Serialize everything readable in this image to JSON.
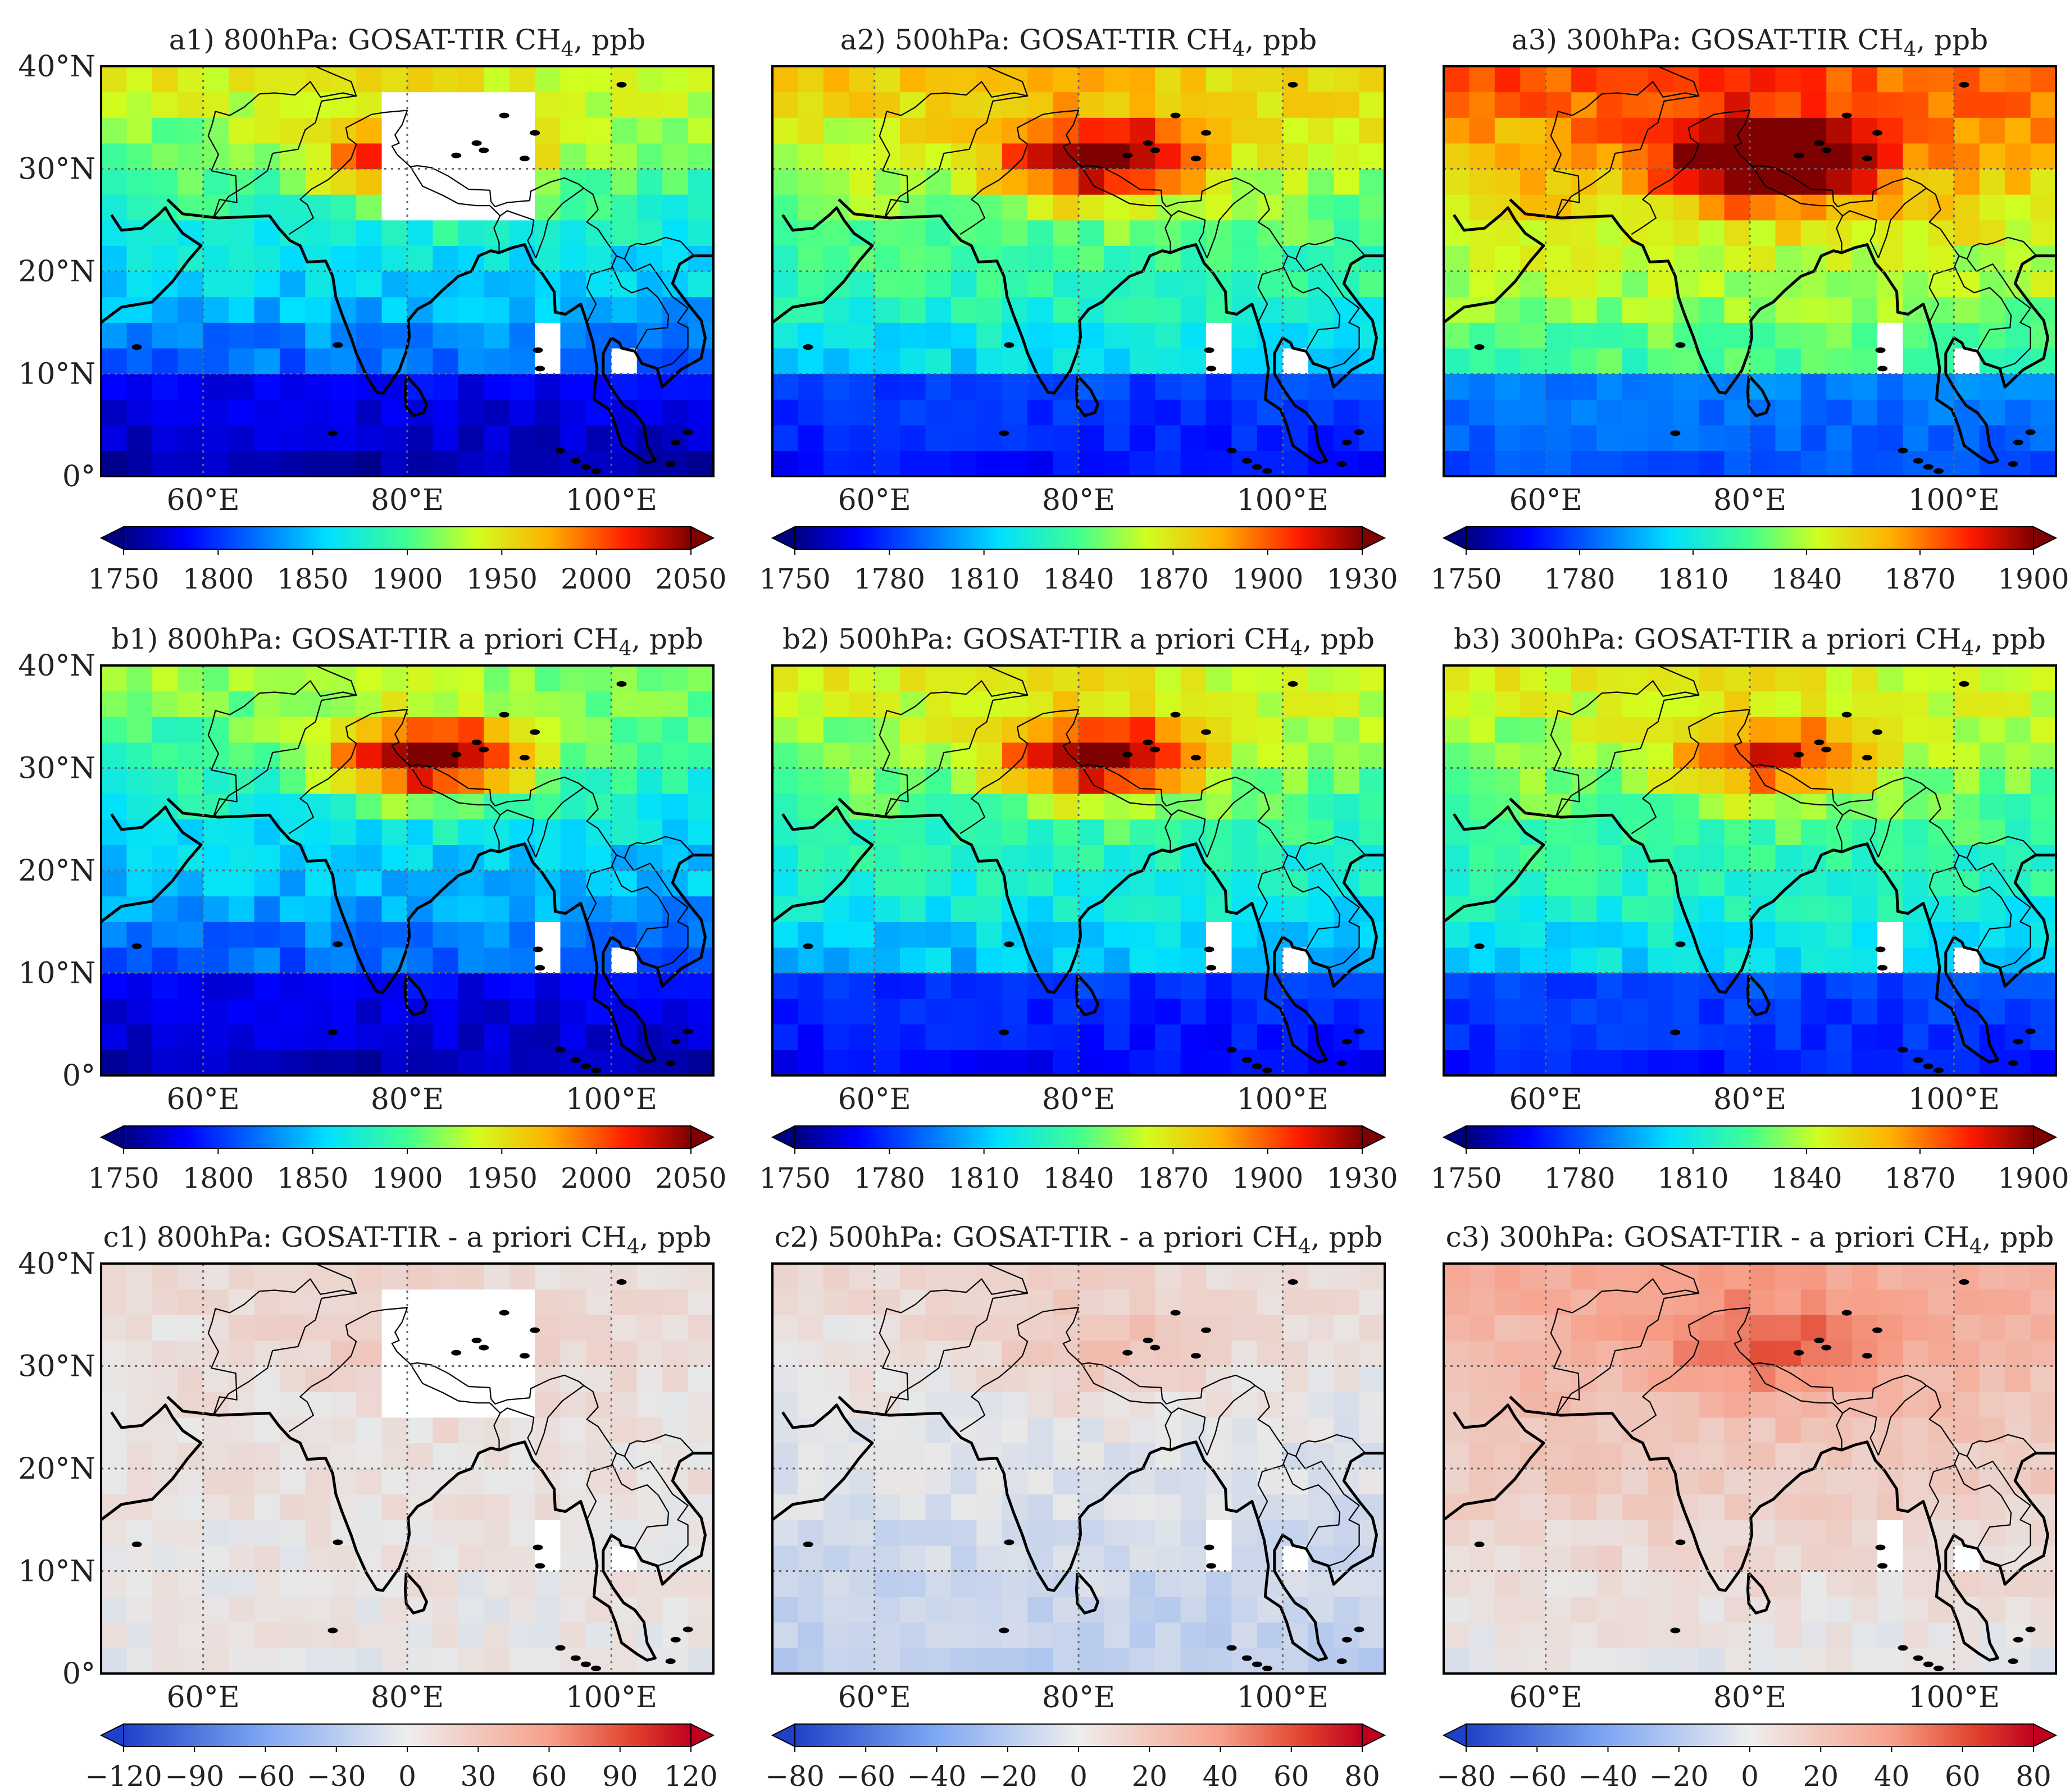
{
  "figure": {
    "description_free": true,
    "map_extent": {
      "lon": [
        50,
        110
      ],
      "lat": [
        0,
        40
      ]
    },
    "xticks": [
      {
        "value": 60,
        "label": "60°E"
      },
      {
        "value": 80,
        "label": "80°E"
      },
      {
        "value": 100,
        "label": "100°E"
      }
    ],
    "yticks": [
      {
        "value": 0,
        "label": "0°"
      },
      {
        "value": 10,
        "label": "10°N"
      },
      {
        "value": 20,
        "label": "20°N"
      },
      {
        "value": 30,
        "label": "30°N"
      },
      {
        "value": 40,
        "label": "40°N"
      }
    ]
  },
  "chart_data": [
    {
      "id": "a1",
      "type": "heatmap",
      "title_prefix": "a1) 800hPa: GOSAT-TIR CH",
      "title_sub": "4",
      "title_suffix": ", ppb",
      "colormap": "jet",
      "range": [
        1750,
        2050
      ],
      "cbar_ticks": [
        1750,
        1800,
        1850,
        1900,
        1950,
        2000,
        2050
      ],
      "mask": "a",
      "field": {
        "base": 1780,
        "gradient": 140,
        "hotspot": 0.9
      }
    },
    {
      "id": "a2",
      "type": "heatmap",
      "title_prefix": "a2) 500hPa: GOSAT-TIR CH",
      "title_sub": "4",
      "title_suffix": ", ppb",
      "colormap": "jet",
      "range": [
        1750,
        1930
      ],
      "cbar_ticks": [
        1750,
        1780,
        1810,
        1840,
        1870,
        1900,
        1930
      ],
      "mask": "b",
      "field": {
        "base": 0.22,
        "gradient": 0.5,
        "hotspot": 0.45
      }
    },
    {
      "id": "a3",
      "type": "heatmap",
      "title_prefix": "a3) 300hPa: GOSAT-TIR CH",
      "title_sub": "4",
      "title_suffix": ", ppb",
      "colormap": "jet",
      "range": [
        1750,
        1900
      ],
      "cbar_ticks": [
        1750,
        1780,
        1810,
        1840,
        1870,
        1900
      ],
      "mask": "b",
      "field": {
        "base": 0.35,
        "gradient": 0.5,
        "hotspot": 0.5
      }
    },
    {
      "id": "b1",
      "type": "heatmap",
      "title_prefix": "b1) 800hPa: GOSAT-TIR a priori CH",
      "title_sub": "4",
      "title_suffix": ", ppb",
      "colormap": "jet",
      "range": [
        1750,
        2050
      ],
      "cbar_ticks": [
        1750,
        1800,
        1850,
        1900,
        1950,
        2000,
        2050
      ],
      "mask": "b",
      "field": {
        "base": 0.08,
        "gradient": 0.5,
        "hotspot": 0.6
      }
    },
    {
      "id": "b2",
      "type": "heatmap",
      "title_prefix": "b2) 500hPa: GOSAT-TIR a priori CH",
      "title_sub": "4",
      "title_suffix": ", ppb",
      "colormap": "jet",
      "range": [
        1750,
        1930
      ],
      "cbar_ticks": [
        1750,
        1780,
        1810,
        1840,
        1870,
        1900,
        1930
      ],
      "mask": "b",
      "field": {
        "base": 0.2,
        "gradient": 0.45,
        "hotspot": 0.5
      }
    },
    {
      "id": "b3",
      "type": "heatmap",
      "title_prefix": "b3) 300hPa: GOSAT-TIR a priori CH",
      "title_sub": "4",
      "title_suffix": ", ppb",
      "colormap": "jet",
      "range": [
        1750,
        1900
      ],
      "cbar_ticks": [
        1750,
        1780,
        1810,
        1840,
        1870,
        1900
      ],
      "mask": "b",
      "field": {
        "base": 0.25,
        "gradient": 0.4,
        "hotspot": 0.35
      }
    },
    {
      "id": "c1",
      "type": "heatmap",
      "title_prefix": "c1) 800hPa: GOSAT-TIR - a priori CH",
      "title_sub": "4",
      "title_suffix": ", ppb",
      "colormap": "coolwarm",
      "range": [
        -120,
        120
      ],
      "cbar_ticks": [
        -120,
        -90,
        -60,
        -30,
        0,
        30,
        60,
        90,
        120
      ],
      "mask": "a",
      "field": {
        "base": 0.52,
        "gradient": 0.04,
        "hotspot": 0.1
      }
    },
    {
      "id": "c2",
      "type": "heatmap",
      "title_prefix": "c2) 500hPa: GOSAT-TIR - a priori CH",
      "title_sub": "4",
      "title_suffix": ", ppb",
      "colormap": "coolwarm",
      "range": [
        -80,
        80
      ],
      "cbar_ticks": [
        -80,
        -60,
        -40,
        -20,
        0,
        20,
        40,
        60,
        80
      ],
      "mask": "b",
      "field": {
        "base": 0.46,
        "gradient": 0.16,
        "hotspot": 0.12
      }
    },
    {
      "id": "c3",
      "type": "heatmap",
      "title_prefix": "c3) 300hPa: GOSAT-TIR - a priori CH",
      "title_sub": "4",
      "title_suffix": ", ppb",
      "colormap": "coolwarm",
      "range": [
        -80,
        80
      ],
      "cbar_ticks": [
        -80,
        -60,
        -40,
        -20,
        0,
        20,
        40,
        60,
        80
      ],
      "mask": "b",
      "field": {
        "base": 0.58,
        "gradient": 0.22,
        "hotspot": 0.2
      }
    }
  ]
}
